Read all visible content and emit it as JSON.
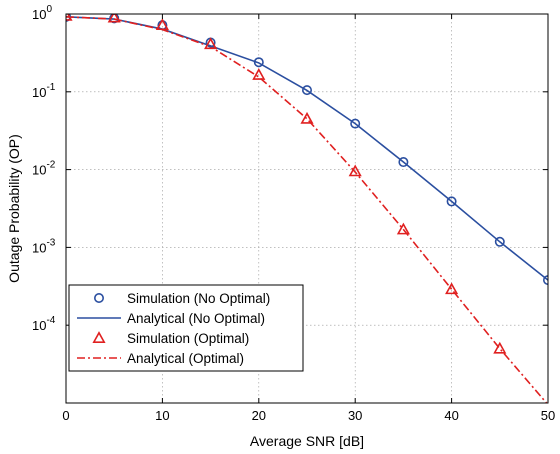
{
  "chart_data": {
    "type": "line",
    "title": "",
    "xlabel": "Average SNR [dB]",
    "ylabel": "Outage Probability (OP)",
    "x_ticks": [
      0,
      10,
      20,
      30,
      40,
      50
    ],
    "x_tick_labels": [
      "0",
      "10",
      "20",
      "30",
      "40",
      "50"
    ],
    "y_scale": "log",
    "y_ticks": [
      1,
      0.1,
      0.01,
      0.001,
      0.0001
    ],
    "y_tick_labels": [
      {
        "base": "10",
        "exp": "0"
      },
      {
        "base": "10",
        "exp": "-1"
      },
      {
        "base": "10",
        "exp": "-2"
      },
      {
        "base": "10",
        "exp": "-3"
      },
      {
        "base": "10",
        "exp": "-4"
      }
    ],
    "xlim": [
      0,
      50
    ],
    "ylim": [
      1e-05,
      1
    ],
    "grid": true,
    "legend_position": "bottom-left",
    "series": [
      {
        "name": "Simulation (No Optimal)",
        "style": "marker",
        "marker": "circle",
        "color": "#2b4fa0",
        "x": [
          0,
          5,
          10,
          15,
          20,
          25,
          30,
          35,
          40,
          45,
          50
        ],
        "y": [
          0.92,
          0.88,
          0.72,
          0.43,
          0.24,
          0.105,
          0.039,
          0.0125,
          0.0039,
          0.00118,
          0.00038
        ]
      },
      {
        "name": "Analytical (No Optimal)",
        "style": "solid",
        "color": "#2b4fa0",
        "x": [
          0,
          5,
          10,
          15,
          20,
          25,
          30,
          35,
          40,
          45,
          50
        ],
        "y": [
          0.92,
          0.86,
          0.64,
          0.39,
          0.235,
          0.104,
          0.039,
          0.0125,
          0.0039,
          0.00118,
          0.00038
        ]
      },
      {
        "name": "Simulation (Optimal)",
        "style": "marker",
        "marker": "triangle",
        "color": "#e02020",
        "x": [
          0,
          5,
          10,
          15,
          20,
          25,
          30,
          35,
          40,
          45
        ],
        "y": [
          0.95,
          0.9,
          0.72,
          0.41,
          0.165,
          0.045,
          0.0095,
          0.0017,
          0.00029,
          5e-05
        ]
      },
      {
        "name": "Analytical (Optimal)",
        "style": "dashdot",
        "color": "#e02020",
        "x": [
          0,
          5,
          10,
          15,
          20,
          25,
          30,
          35,
          40,
          45,
          50
        ],
        "y": [
          0.92,
          0.86,
          0.63,
          0.38,
          0.155,
          0.045,
          0.0093,
          0.0017,
          0.00029,
          5e-05,
          9.5e-06
        ]
      }
    ]
  }
}
